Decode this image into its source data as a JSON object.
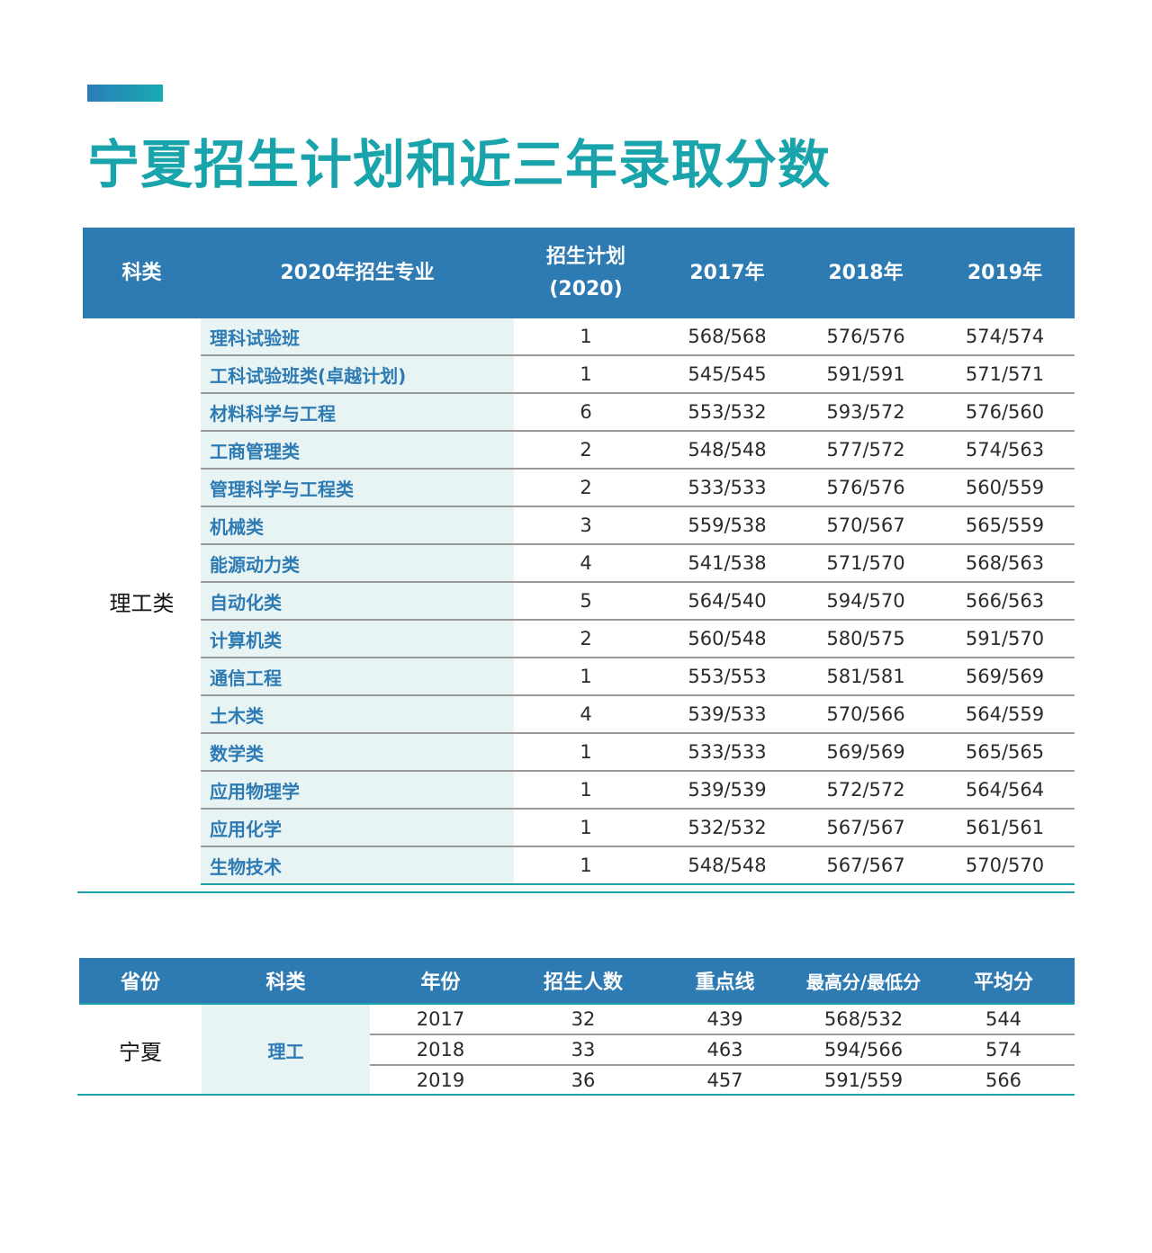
{
  "title": "宁夏招生计划和近三年录取分数",
  "table1": {
    "headers": {
      "category": "科类",
      "major": "2020年招生专业",
      "plan_line1": "招生计划",
      "plan_line2": "(2020)",
      "y2017": "2017年",
      "y2018": "2018年",
      "y2019": "2019年"
    },
    "category": "理工类",
    "rows": [
      {
        "major": "理科试验班",
        "plan": "1",
        "y2017": "568/568",
        "y2018": "576/576",
        "y2019": "574/574"
      },
      {
        "major": "工科试验班类(卓越计划)",
        "plan": "1",
        "y2017": "545/545",
        "y2018": "591/591",
        "y2019": "571/571"
      },
      {
        "major": "材料科学与工程",
        "plan": "6",
        "y2017": "553/532",
        "y2018": "593/572",
        "y2019": "576/560"
      },
      {
        "major": "工商管理类",
        "plan": "2",
        "y2017": "548/548",
        "y2018": "577/572",
        "y2019": "574/563"
      },
      {
        "major": "管理科学与工程类",
        "plan": "2",
        "y2017": "533/533",
        "y2018": "576/576",
        "y2019": "560/559"
      },
      {
        "major": "机械类",
        "plan": "3",
        "y2017": "559/538",
        "y2018": "570/567",
        "y2019": "565/559"
      },
      {
        "major": "能源动力类",
        "plan": "4",
        "y2017": "541/538",
        "y2018": "571/570",
        "y2019": "568/563"
      },
      {
        "major": "自动化类",
        "plan": "5",
        "y2017": "564/540",
        "y2018": "594/570",
        "y2019": "566/563"
      },
      {
        "major": "计算机类",
        "plan": "2",
        "y2017": "560/548",
        "y2018": "580/575",
        "y2019": "591/570"
      },
      {
        "major": "通信工程",
        "plan": "1",
        "y2017": "553/553",
        "y2018": "581/581",
        "y2019": "569/569"
      },
      {
        "major": "土木类",
        "plan": "4",
        "y2017": "539/533",
        "y2018": "570/566",
        "y2019": "564/559"
      },
      {
        "major": "数学类",
        "plan": "1",
        "y2017": "533/533",
        "y2018": "569/569",
        "y2019": "565/565"
      },
      {
        "major": "应用物理学",
        "plan": "1",
        "y2017": "539/539",
        "y2018": "572/572",
        "y2019": "564/564"
      },
      {
        "major": "应用化学",
        "plan": "1",
        "y2017": "532/532",
        "y2018": "567/567",
        "y2019": "561/561"
      },
      {
        "major": "生物技术",
        "plan": "1",
        "y2017": "548/548",
        "y2018": "567/567",
        "y2019": "570/570"
      }
    ]
  },
  "table2": {
    "headers": {
      "province": "省份",
      "category": "科类",
      "year": "年份",
      "enrolled": "招生人数",
      "key_line": "重点线",
      "max_min": "最高分/最低分",
      "average": "平均分"
    },
    "province": "宁夏",
    "category": "理工",
    "rows": [
      {
        "year": "2017",
        "enrolled": "32",
        "key_line": "439",
        "max_min": "568/532",
        "average": "544"
      },
      {
        "year": "2018",
        "enrolled": "33",
        "key_line": "463",
        "max_min": "594/566",
        "average": "574"
      },
      {
        "year": "2019",
        "enrolled": "36",
        "key_line": "457",
        "max_min": "591/559",
        "average": "566"
      }
    ]
  },
  "colors": {
    "title": "#19a3ab",
    "header_bg": "#2e7bb4",
    "major_bg": "#e8f4f3",
    "rule": "#19a3ab"
  }
}
